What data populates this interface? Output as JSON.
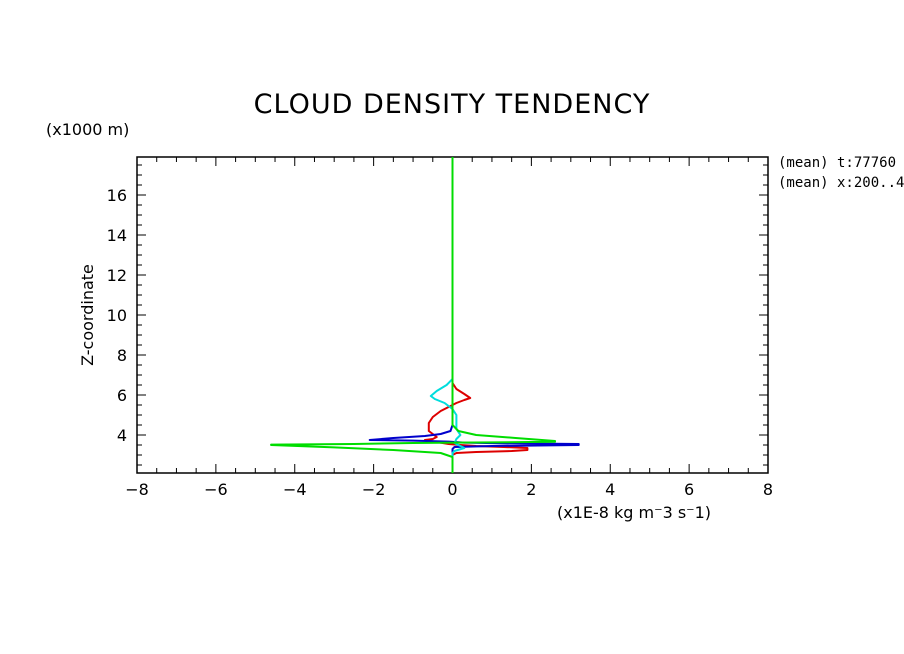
{
  "chart_data": {
    "type": "line",
    "title": "CLOUD DENSITY TENDENCY",
    "xlabel": "(x1E-8 kg m⁻3 s⁻1)",
    "ylabel": "Z-coordinate",
    "yunit": "(x1000 m)",
    "annotations": [
      "(mean) t:77760",
      "(mean) x:200..4"
    ],
    "xlim": [
      -8,
      8
    ],
    "ylim": [
      2.1,
      17.9
    ],
    "xticks": [
      -8,
      -6,
      -4,
      -2,
      0,
      2,
      4,
      6,
      8
    ],
    "yticks": [
      4,
      6,
      8,
      10,
      12,
      14,
      16
    ],
    "grid": false,
    "legend": "none",
    "series": [
      {
        "color": "#dd0000",
        "points": [
          [
            0,
            2.1
          ],
          [
            0,
            3.0
          ],
          [
            0.1,
            3.1
          ],
          [
            0.6,
            3.15
          ],
          [
            1.5,
            3.2
          ],
          [
            1.9,
            3.25
          ],
          [
            1.9,
            3.35
          ],
          [
            1.3,
            3.4
          ],
          [
            0.6,
            3.45
          ],
          [
            0.2,
            3.5
          ],
          [
            -0.1,
            3.55
          ],
          [
            -0.4,
            3.65
          ],
          [
            -0.7,
            3.75
          ],
          [
            -0.5,
            3.8
          ],
          [
            -0.4,
            3.9
          ],
          [
            -0.6,
            4.2
          ],
          [
            -0.6,
            4.6
          ],
          [
            -0.5,
            4.9
          ],
          [
            -0.3,
            5.2
          ],
          [
            -0.1,
            5.4
          ],
          [
            0,
            5.5
          ],
          [
            0.1,
            5.6
          ],
          [
            0.3,
            5.75
          ],
          [
            0.45,
            5.85
          ],
          [
            0.3,
            6.05
          ],
          [
            0.1,
            6.3
          ],
          [
            0,
            6.6
          ],
          [
            0,
            7.0
          ],
          [
            0,
            17.9
          ]
        ]
      },
      {
        "color": "#0000cc",
        "points": [
          [
            0,
            2.1
          ],
          [
            0,
            3.3
          ],
          [
            0.05,
            3.4
          ],
          [
            1.0,
            3.45
          ],
          [
            3.2,
            3.5
          ],
          [
            3.2,
            3.55
          ],
          [
            1.5,
            3.58
          ],
          [
            0.3,
            3.62
          ],
          [
            -0.1,
            3.67
          ],
          [
            -1.0,
            3.72
          ],
          [
            -2.1,
            3.75
          ],
          [
            -1.5,
            3.85
          ],
          [
            -0.7,
            3.95
          ],
          [
            -0.3,
            4.05
          ],
          [
            -0.05,
            4.2
          ],
          [
            0,
            4.5
          ],
          [
            0,
            5.5
          ],
          [
            0,
            8.8
          ],
          [
            0,
            17.9
          ]
        ]
      },
      {
        "color": "#00dddd",
        "points": [
          [
            0,
            2.1
          ],
          [
            0,
            3.1
          ],
          [
            0.05,
            3.2
          ],
          [
            0.3,
            3.35
          ],
          [
            0.15,
            3.5
          ],
          [
            0.05,
            3.6
          ],
          [
            0.1,
            3.8
          ],
          [
            0.2,
            4.0
          ],
          [
            0.1,
            4.3
          ],
          [
            0.1,
            4.7
          ],
          [
            0.1,
            5.0
          ],
          [
            0,
            5.3
          ],
          [
            -0.2,
            5.6
          ],
          [
            -0.45,
            5.8
          ],
          [
            -0.55,
            5.95
          ],
          [
            -0.4,
            6.2
          ],
          [
            -0.15,
            6.5
          ],
          [
            0,
            6.8
          ],
          [
            0,
            8
          ],
          [
            0,
            13.2
          ],
          [
            0,
            17.9
          ]
        ]
      },
      {
        "color": "#00dd00",
        "points": [
          [
            0,
            2.1
          ],
          [
            0,
            2.9
          ],
          [
            -0.3,
            3.1
          ],
          [
            -1.5,
            3.25
          ],
          [
            -3.0,
            3.38
          ],
          [
            -4.6,
            3.5
          ],
          [
            -4.6,
            3.52
          ],
          [
            -2.5,
            3.55
          ],
          [
            -1.0,
            3.6
          ],
          [
            0,
            3.62
          ],
          [
            1.0,
            3.63
          ],
          [
            2.6,
            3.66
          ],
          [
            2.6,
            3.7
          ],
          [
            1.6,
            3.85
          ],
          [
            0.6,
            4.0
          ],
          [
            0.15,
            4.2
          ],
          [
            0,
            4.5
          ],
          [
            0,
            17.9
          ]
        ]
      }
    ]
  }
}
